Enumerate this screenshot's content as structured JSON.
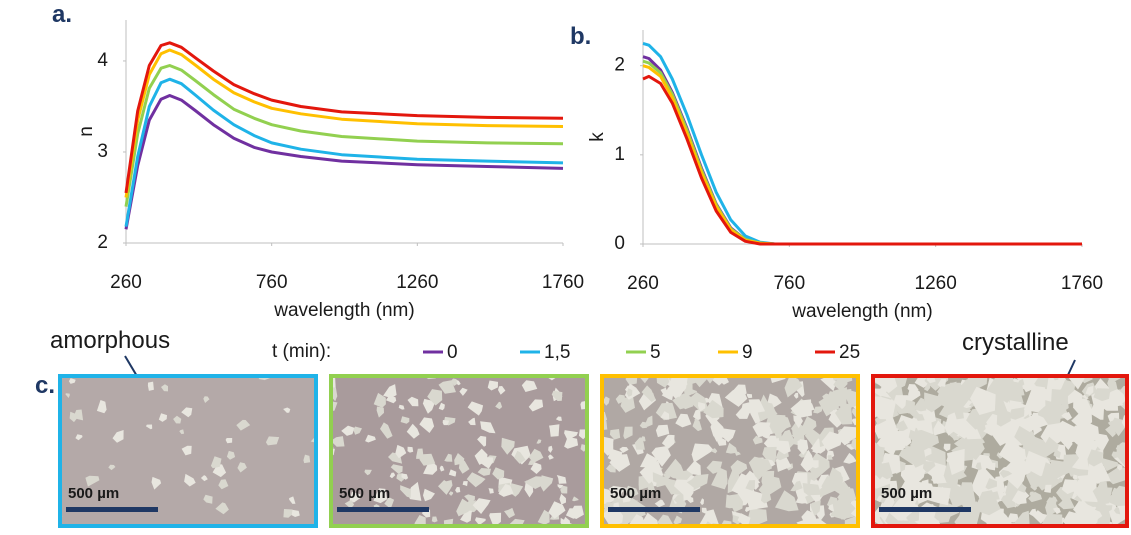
{
  "chart_data": [
    {
      "type": "line",
      "panel": "a.",
      "ylabel": "n",
      "xlabel": "wavelength (nm)",
      "legend_title": "t (min):",
      "x": [
        260,
        300,
        340,
        380,
        410,
        450,
        500,
        560,
        630,
        700,
        760,
        860,
        1000,
        1260,
        1500,
        1760
      ],
      "xlim": [
        260,
        1760
      ],
      "xticks": [
        260,
        760,
        1260,
        1760
      ],
      "ylim": [
        2,
        4.45
      ],
      "yticks": [
        2,
        3,
        4
      ],
      "series": [
        {
          "name": "0",
          "color": "#7030a0",
          "values": [
            2.15,
            2.85,
            3.35,
            3.58,
            3.62,
            3.57,
            3.45,
            3.3,
            3.15,
            3.05,
            3.0,
            2.95,
            2.9,
            2.86,
            2.84,
            2.82
          ]
        },
        {
          "name": "1,5",
          "color": "#1fb3e8",
          "values": [
            2.18,
            2.95,
            3.5,
            3.76,
            3.8,
            3.75,
            3.62,
            3.46,
            3.3,
            3.18,
            3.1,
            3.03,
            2.97,
            2.92,
            2.9,
            2.88
          ]
        },
        {
          "name": "5",
          "color": "#92d050",
          "values": [
            2.4,
            3.2,
            3.7,
            3.92,
            3.95,
            3.9,
            3.78,
            3.63,
            3.47,
            3.37,
            3.3,
            3.23,
            3.17,
            3.12,
            3.1,
            3.09
          ]
        },
        {
          "name": "9",
          "color": "#ffc000",
          "values": [
            2.5,
            3.35,
            3.85,
            4.08,
            4.12,
            4.07,
            3.95,
            3.8,
            3.65,
            3.55,
            3.48,
            3.42,
            3.36,
            3.31,
            3.29,
            3.28
          ]
        },
        {
          "name": "25",
          "color": "#e3170d",
          "values": [
            2.55,
            3.45,
            3.95,
            4.17,
            4.2,
            4.15,
            4.03,
            3.89,
            3.74,
            3.64,
            3.57,
            3.5,
            3.44,
            3.4,
            3.38,
            3.37
          ]
        }
      ]
    },
    {
      "type": "line",
      "panel": "b.",
      "ylabel": "k",
      "xlabel": "wavelength (nm)",
      "x": [
        260,
        280,
        320,
        360,
        410,
        460,
        510,
        560,
        610,
        660,
        710,
        760,
        1260,
        1760
      ],
      "xlim": [
        260,
        1760
      ],
      "xticks": [
        260,
        760,
        1260,
        1760
      ],
      "ylim": [
        0,
        2.4
      ],
      "yticks": [
        0,
        1,
        2
      ],
      "series": [
        {
          "name": "0",
          "color": "#7030a0",
          "values": [
            2.1,
            2.08,
            1.95,
            1.7,
            1.3,
            0.85,
            0.45,
            0.18,
            0.05,
            0.01,
            0,
            0,
            0,
            0
          ]
        },
        {
          "name": "1,5",
          "color": "#1fb3e8",
          "values": [
            2.25,
            2.23,
            2.1,
            1.85,
            1.45,
            1.0,
            0.58,
            0.27,
            0.09,
            0.02,
            0,
            0,
            0,
            0
          ]
        },
        {
          "name": "5",
          "color": "#92d050",
          "values": [
            2.05,
            2.03,
            1.92,
            1.68,
            1.28,
            0.83,
            0.44,
            0.17,
            0.05,
            0.01,
            0,
            0,
            0,
            0
          ]
        },
        {
          "name": "9",
          "color": "#ffc000",
          "values": [
            2.0,
            1.98,
            1.88,
            1.64,
            1.24,
            0.8,
            0.42,
            0.16,
            0.04,
            0.01,
            0,
            0,
            0,
            0
          ]
        },
        {
          "name": "25",
          "color": "#e3170d",
          "values": [
            1.85,
            1.88,
            1.8,
            1.58,
            1.18,
            0.74,
            0.37,
            0.13,
            0.03,
            0,
            0,
            0,
            0,
            0
          ]
        }
      ]
    }
  ],
  "micrographs": {
    "panel": "c.",
    "amorphous": "amorphous",
    "crystalline": "crystalline",
    "images": [
      {
        "color": "#1fb3e8",
        "scale_bar": "500 µm"
      },
      {
        "color": "#92d050",
        "scale_bar": "500 µm"
      },
      {
        "color": "#ffc000",
        "scale_bar": "500 µm"
      },
      {
        "color": "#e3170d",
        "scale_bar": "500 µm"
      }
    ]
  }
}
